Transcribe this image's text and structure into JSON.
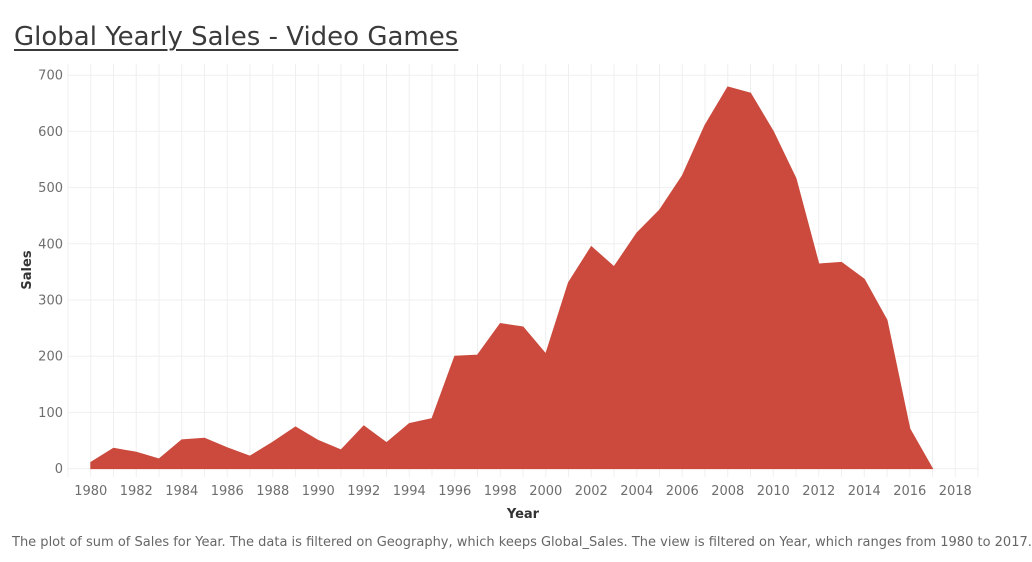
{
  "title": "Global Yearly Sales - Video Games",
  "caption": "The plot of sum of Sales for Year. The data is filtered on Geography, which keeps Global_Sales. The view is filtered on Year, which ranges from 1980 to 2017.",
  "colors": {
    "area": "#cb4a3d",
    "grid": "#efefef",
    "tick_text": "#6e6e6e",
    "axis_title": "#333333"
  },
  "chart_data": {
    "type": "area",
    "title": "Global Yearly Sales - Video Games",
    "xlabel": "Year",
    "ylabel": "Sales",
    "xlim": [
      1979,
      2019
    ],
    "ylim": [
      -15,
      720
    ],
    "grid": true,
    "x_ticks": [
      "1980",
      "1982",
      "1984",
      "1986",
      "1988",
      "1990",
      "1992",
      "1994",
      "1996",
      "1998",
      "2000",
      "2002",
      "2004",
      "2006",
      "2008",
      "2010",
      "2012",
      "2014",
      "2016",
      "2018"
    ],
    "y_ticks": [
      "0",
      "100",
      "200",
      "300",
      "400",
      "500",
      "600",
      "700"
    ],
    "x": [
      1980,
      1981,
      1982,
      1983,
      1984,
      1985,
      1986,
      1987,
      1988,
      1989,
      1990,
      1991,
      1992,
      1993,
      1994,
      1995,
      1996,
      1997,
      1998,
      1999,
      2000,
      2001,
      2002,
      2003,
      2004,
      2005,
      2006,
      2007,
      2008,
      2009,
      2010,
      2011,
      2012,
      2013,
      2014,
      2015,
      2016,
      2017
    ],
    "values": [
      11,
      36,
      29,
      17,
      51,
      54,
      37,
      22,
      47,
      74,
      50,
      33,
      76,
      46,
      80,
      89,
      200,
      202,
      258,
      252,
      204,
      331,
      395,
      359,
      419,
      460,
      521,
      611,
      679,
      668,
      600,
      516,
      364,
      367,
      337,
      264,
      71,
      0
    ]
  }
}
